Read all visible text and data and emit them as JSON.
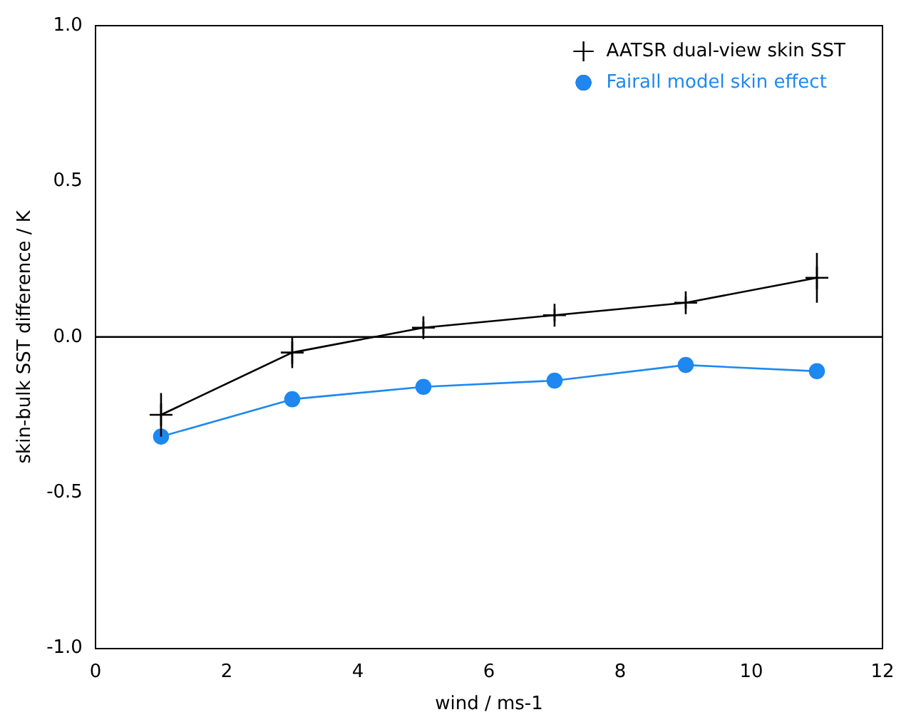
{
  "chart_data": {
    "type": "line",
    "xlabel": "wind / ms-1",
    "ylabel": "skin-bulk SST difference / K",
    "x": [
      1,
      3,
      5,
      7,
      9,
      11
    ],
    "series": [
      {
        "name": "AATSR dual-view skin SST",
        "color": "#000000",
        "marker": "cross",
        "values": [
          -0.25,
          -0.05,
          0.03,
          0.07,
          0.11,
          0.19
        ],
        "errors": [
          0.07,
          0.05,
          0.02,
          0.02,
          0.02,
          0.08
        ]
      },
      {
        "name": "Fairall model skin effect",
        "color": "#1e88f0",
        "marker": "circle",
        "values": [
          -0.32,
          -0.2,
          -0.16,
          -0.14,
          -0.09,
          -0.11
        ]
      }
    ],
    "xlim": [
      0,
      12
    ],
    "xticks": [
      0,
      2,
      4,
      6,
      8,
      10,
      12
    ],
    "ylim": [
      -1,
      1
    ],
    "yticks": [
      {
        "value": -1,
        "label": "-1.0"
      },
      {
        "value": -0.5,
        "label": "-0.5"
      },
      {
        "value": 0,
        "label": "0.0"
      },
      {
        "value": 0.5,
        "label": "0.5"
      },
      {
        "value": 1,
        "label": "1.0"
      }
    ],
    "ref_lines": [
      {
        "axis": "y",
        "value": 0,
        "color": "#000000"
      }
    ],
    "grid": false,
    "legend": "top right"
  }
}
